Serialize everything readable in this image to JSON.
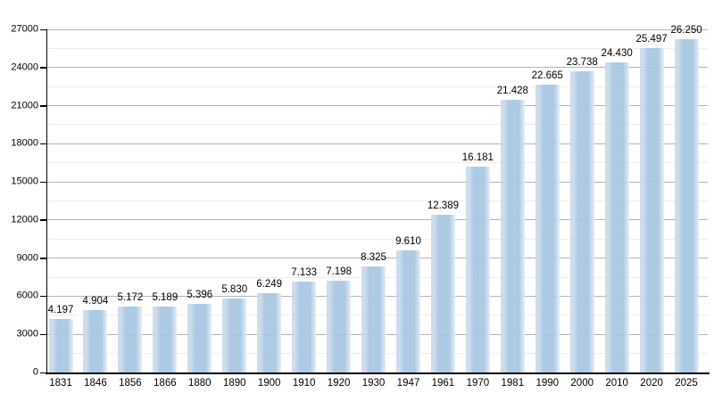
{
  "chart_data": {
    "type": "bar",
    "title": "",
    "xlabel": "",
    "ylabel": "",
    "categories": [
      "1831",
      "1846",
      "1856",
      "1866",
      "1880",
      "1890",
      "1900",
      "1910",
      "1920",
      "1930",
      "1947",
      "1961",
      "1970",
      "1981",
      "1990",
      "2000",
      "2010",
      "2020",
      "2025"
    ],
    "values": [
      4197,
      4904,
      5172,
      5189,
      5396,
      5830,
      6249,
      7133,
      7198,
      8325,
      9610,
      12389,
      16181,
      21428,
      22665,
      23738,
      24430,
      25497,
      26250
    ],
    "value_labels": [
      "4.197",
      "4.904",
      "5.172",
      "5.189",
      "5.396",
      "5.830",
      "6.249",
      "7.133",
      "7.198",
      "8.325",
      "9.610",
      "12.389",
      "16.181",
      "21.428",
      "22.665",
      "23.738",
      "24.430",
      "25.497",
      "26.250"
    ],
    "ylim": [
      0,
      27000
    ],
    "ytick_step": 3000,
    "yminor_step": 1500,
    "ytick_labels": [
      "0",
      "3000",
      "6000",
      "9000",
      "12000",
      "15000",
      "18000",
      "21000",
      "24000",
      "27000"
    ],
    "grid": "horizontal-major-and-minor",
    "legend": "none",
    "colors": {
      "bar_main": "#a7c6e1",
      "bar_highlight": "#c9daeb",
      "bar_fade": "#e4eef7",
      "gridline_major": "#b3b3b3",
      "gridline_minor": "#f2ece5",
      "axis": "#000000",
      "background": "#ffffff",
      "text": "#000000"
    }
  }
}
